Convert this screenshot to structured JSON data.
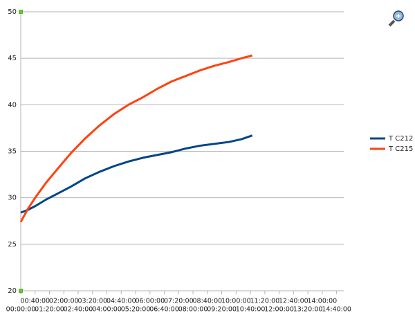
{
  "chart_data": {
    "type": "line",
    "x": [
      0,
      0.33,
      0.67,
      1.17,
      1.67,
      2.33,
      3,
      3.67,
      4.33,
      5,
      5.67,
      6.33,
      7,
      7.67,
      8.33,
      9,
      9.67,
      10.25,
      10.75
    ],
    "series": [
      {
        "name": "T C212",
        "color": "#004586",
        "values": [
          28.4,
          28.7,
          29.1,
          29.8,
          30.4,
          31.2,
          32.1,
          32.8,
          33.4,
          33.9,
          34.3,
          34.6,
          34.9,
          35.3,
          35.6,
          35.8,
          36.0,
          36.3,
          36.7
        ]
      },
      {
        "name": "T C215",
        "color": "#ff420e",
        "values": [
          27.4,
          28.8,
          30.0,
          31.6,
          33.0,
          34.8,
          36.4,
          37.8,
          39.0,
          40.0,
          40.8,
          41.7,
          42.5,
          43.1,
          43.7,
          44.2,
          44.6,
          45.0,
          45.3
        ]
      }
    ],
    "xlim": [
      0,
      15
    ],
    "xticks": [
      {
        "value": 0,
        "label": "00:00:00"
      },
      {
        "value": 0.6667,
        "label": "00:40:00"
      },
      {
        "value": 1.3333,
        "label": "01:20:00"
      },
      {
        "value": 2,
        "label": "02:00:00"
      },
      {
        "value": 2.6667,
        "label": "02:40:00"
      },
      {
        "value": 3.3333,
        "label": "03:20:00"
      },
      {
        "value": 4,
        "label": "04:00:00"
      },
      {
        "value": 4.6667,
        "label": "04:40:00"
      },
      {
        "value": 5.3333,
        "label": "05:20:00"
      },
      {
        "value": 6,
        "label": "06:00:00"
      },
      {
        "value": 6.6667,
        "label": "06:40:00"
      },
      {
        "value": 7.3333,
        "label": "07:20:00"
      },
      {
        "value": 8,
        "label": "08:00:00"
      },
      {
        "value": 8.6667,
        "label": "08:40:00"
      },
      {
        "value": 9.3333,
        "label": "09:20:00"
      },
      {
        "value": 10,
        "label": "10:00:00"
      },
      {
        "value": 10.6667,
        "label": "10:40:00"
      },
      {
        "value": 11.3333,
        "label": "11:20:00"
      },
      {
        "value": 12,
        "label": "12:00:00"
      },
      {
        "value": 12.6667,
        "label": "12:40:00"
      },
      {
        "value": 13.3333,
        "label": "13:20:00"
      },
      {
        "value": 14,
        "label": "14:00:00"
      },
      {
        "value": 14.6667,
        "label": "14:40:00"
      }
    ],
    "ylim": [
      20,
      50
    ],
    "yticks": [
      20,
      25,
      30,
      35,
      40,
      45,
      50
    ],
    "grid": true
  }
}
